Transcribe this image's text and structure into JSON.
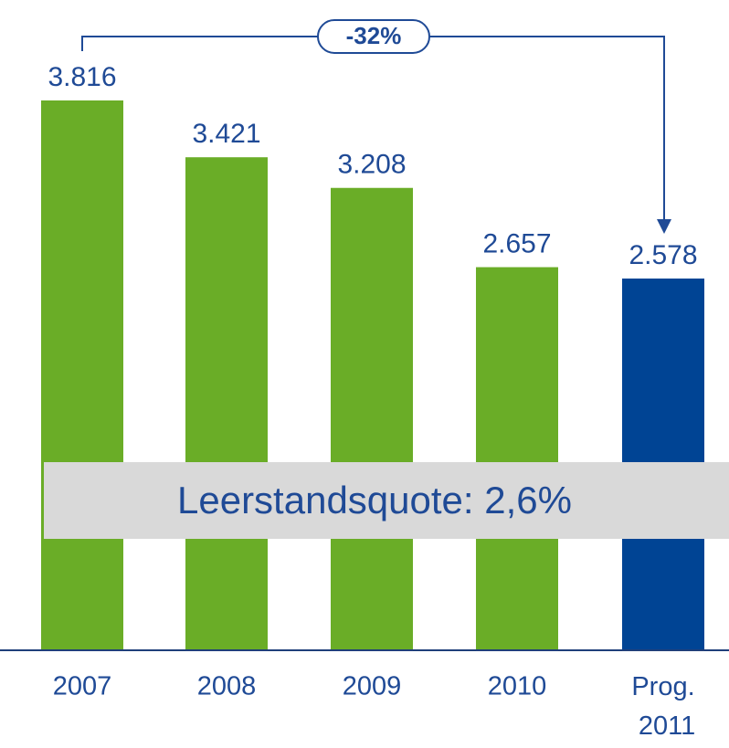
{
  "chart_data": {
    "type": "bar",
    "categories": [
      "2007",
      "2008",
      "2009",
      "2010",
      "Prog. 2011"
    ],
    "values": [
      3816,
      3421,
      3208,
      2657,
      2578
    ],
    "value_labels": [
      "3.816",
      "3.421",
      "3.208",
      "2.657",
      "2.578"
    ],
    "colors": [
      "#6aad27",
      "#6aad27",
      "#6aad27",
      "#6aad27",
      "#004494"
    ],
    "annotations": {
      "change": "-32%",
      "note": "Leerstandsquote: 2,6%"
    }
  }
}
